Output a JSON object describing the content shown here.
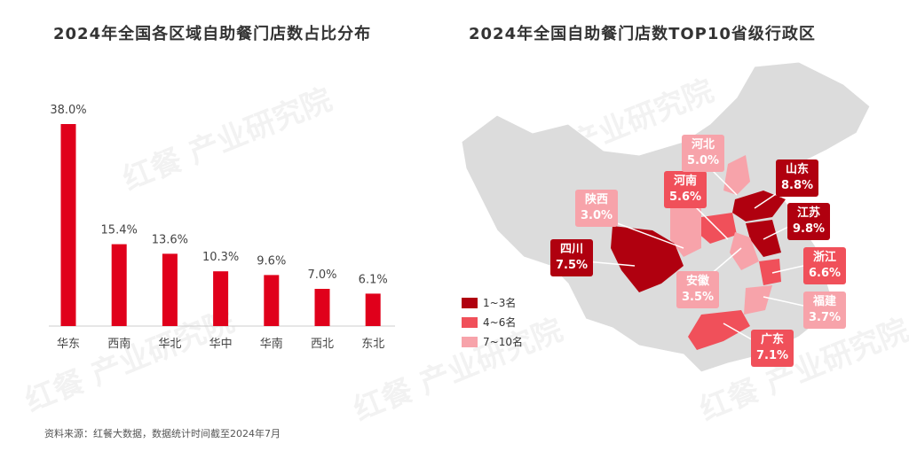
{
  "left_title": "2024年全国各区域自助餐门店数占比分布",
  "right_title": "2024年全国自助餐门店数TOP10省级行政区",
  "source": "资料来源：红餐大数据，数据统计时间截至2024年7月",
  "watermark": "红餐 产业研究院",
  "colors": {
    "bar": "#e0001b",
    "rank1_3": "#b0000f",
    "rank4_6": "#f0505a",
    "rank7_10": "#f7a3aa",
    "map_base": "#dcdcdc"
  },
  "chart_data": [
    {
      "type": "bar",
      "title": "2024年全国各区域自助餐门店数占比分布",
      "categories": [
        "华东",
        "西南",
        "华北",
        "华中",
        "华南",
        "西北",
        "东北"
      ],
      "values": [
        38.0,
        15.4,
        13.6,
        10.3,
        9.6,
        7.0,
        6.1
      ],
      "labels": [
        "38.0%",
        "15.4%",
        "13.6%",
        "10.3%",
        "9.6%",
        "7.0%",
        "6.1%"
      ],
      "ylim": [
        0,
        40
      ],
      "grid": false
    },
    {
      "type": "map",
      "title": "2024年全国自助餐门店数TOP10省级行政区",
      "legend": [
        {
          "label": "1~3名",
          "color": "#b0000f"
        },
        {
          "label": "4~6名",
          "color": "#f0505a"
        },
        {
          "label": "7~10名",
          "color": "#f7a3aa"
        }
      ],
      "provinces": [
        {
          "name": "江苏",
          "value": "9.8%",
          "tier": "dark"
        },
        {
          "name": "山东",
          "value": "8.8%",
          "tier": "dark"
        },
        {
          "name": "四川",
          "value": "7.5%",
          "tier": "dark"
        },
        {
          "name": "广东",
          "value": "7.1%",
          "tier": "mid"
        },
        {
          "name": "浙江",
          "value": "6.6%",
          "tier": "mid"
        },
        {
          "name": "河南",
          "value": "5.6%",
          "tier": "mid"
        },
        {
          "name": "河北",
          "value": "5.0%",
          "tier": "light"
        },
        {
          "name": "福建",
          "value": "3.7%",
          "tier": "light"
        },
        {
          "name": "安徽",
          "value": "3.5%",
          "tier": "light"
        },
        {
          "name": "陕西",
          "value": "3.0%",
          "tier": "light"
        }
      ]
    }
  ]
}
